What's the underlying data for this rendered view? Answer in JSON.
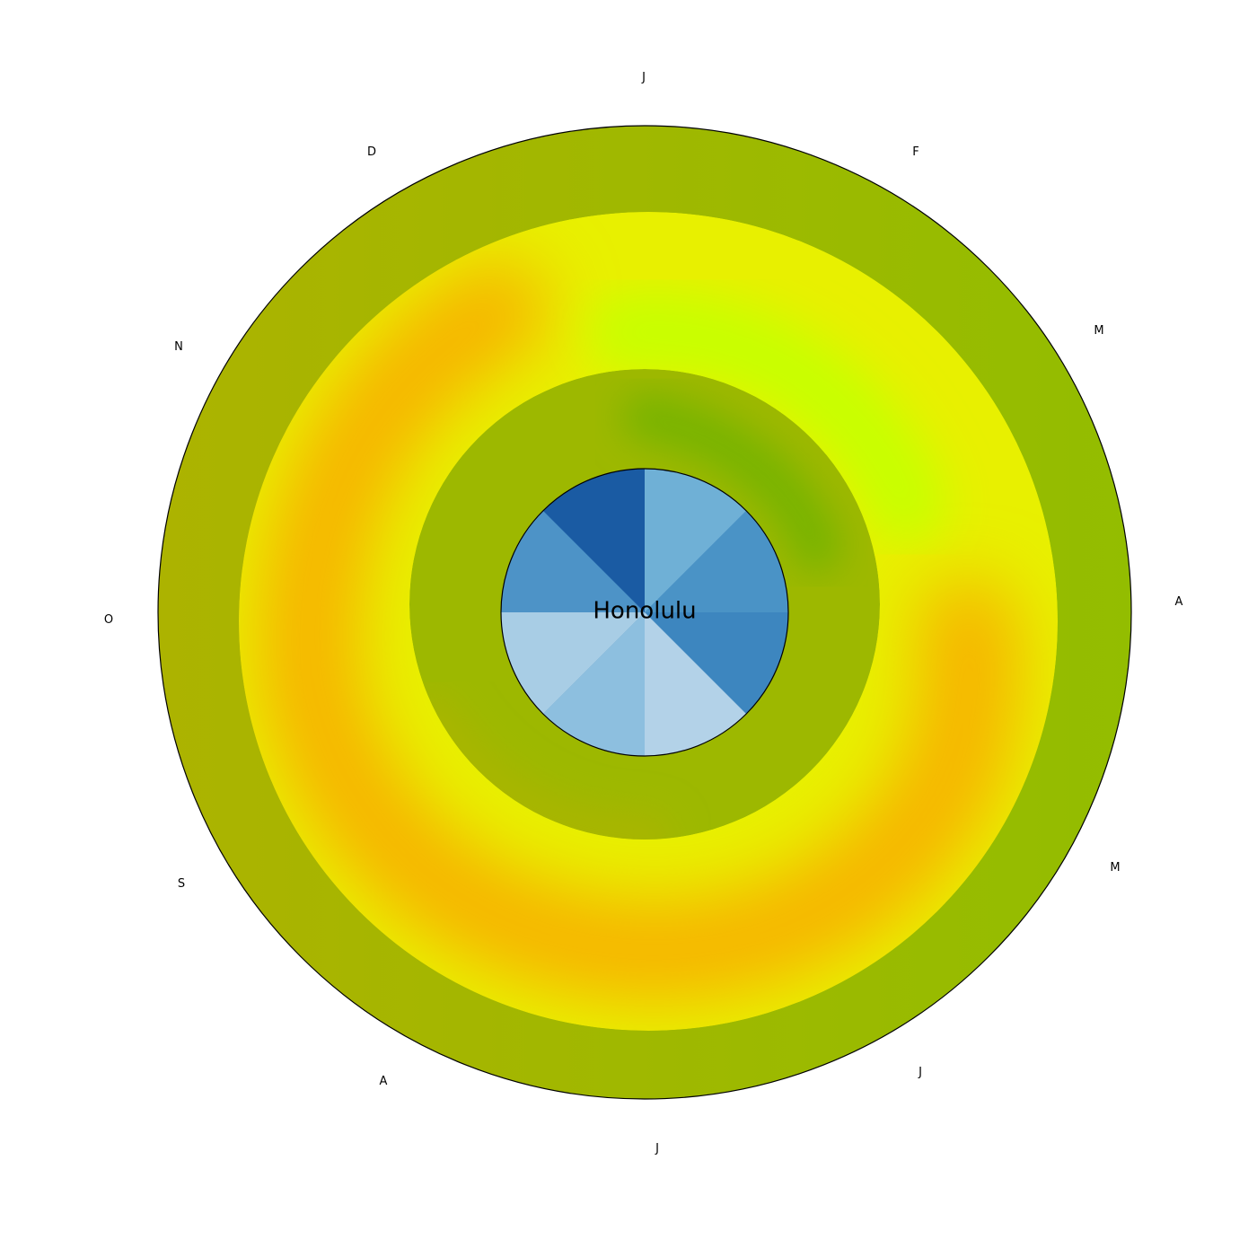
{
  "chart_data": {
    "type": "radial-heatmap",
    "title": "Honolulu",
    "months": [
      "J",
      "F",
      "M",
      "A",
      "M",
      "J",
      "J",
      "A",
      "S",
      "O",
      "N",
      "D"
    ],
    "center_color": "#3a87c0",
    "colors": {
      "outer_ring": "#a2b400",
      "outer_ring_right": "#93bd00",
      "middle_ring": "#e8f000",
      "middle_ring_warm": "#f7b500",
      "middle_ring_cool": "#c9ff00",
      "inner_ring": "#9cb800",
      "inner_ring_cool": "#7db500",
      "center_dark": "#1a5ba3",
      "center_light": "#a8cde5"
    }
  }
}
